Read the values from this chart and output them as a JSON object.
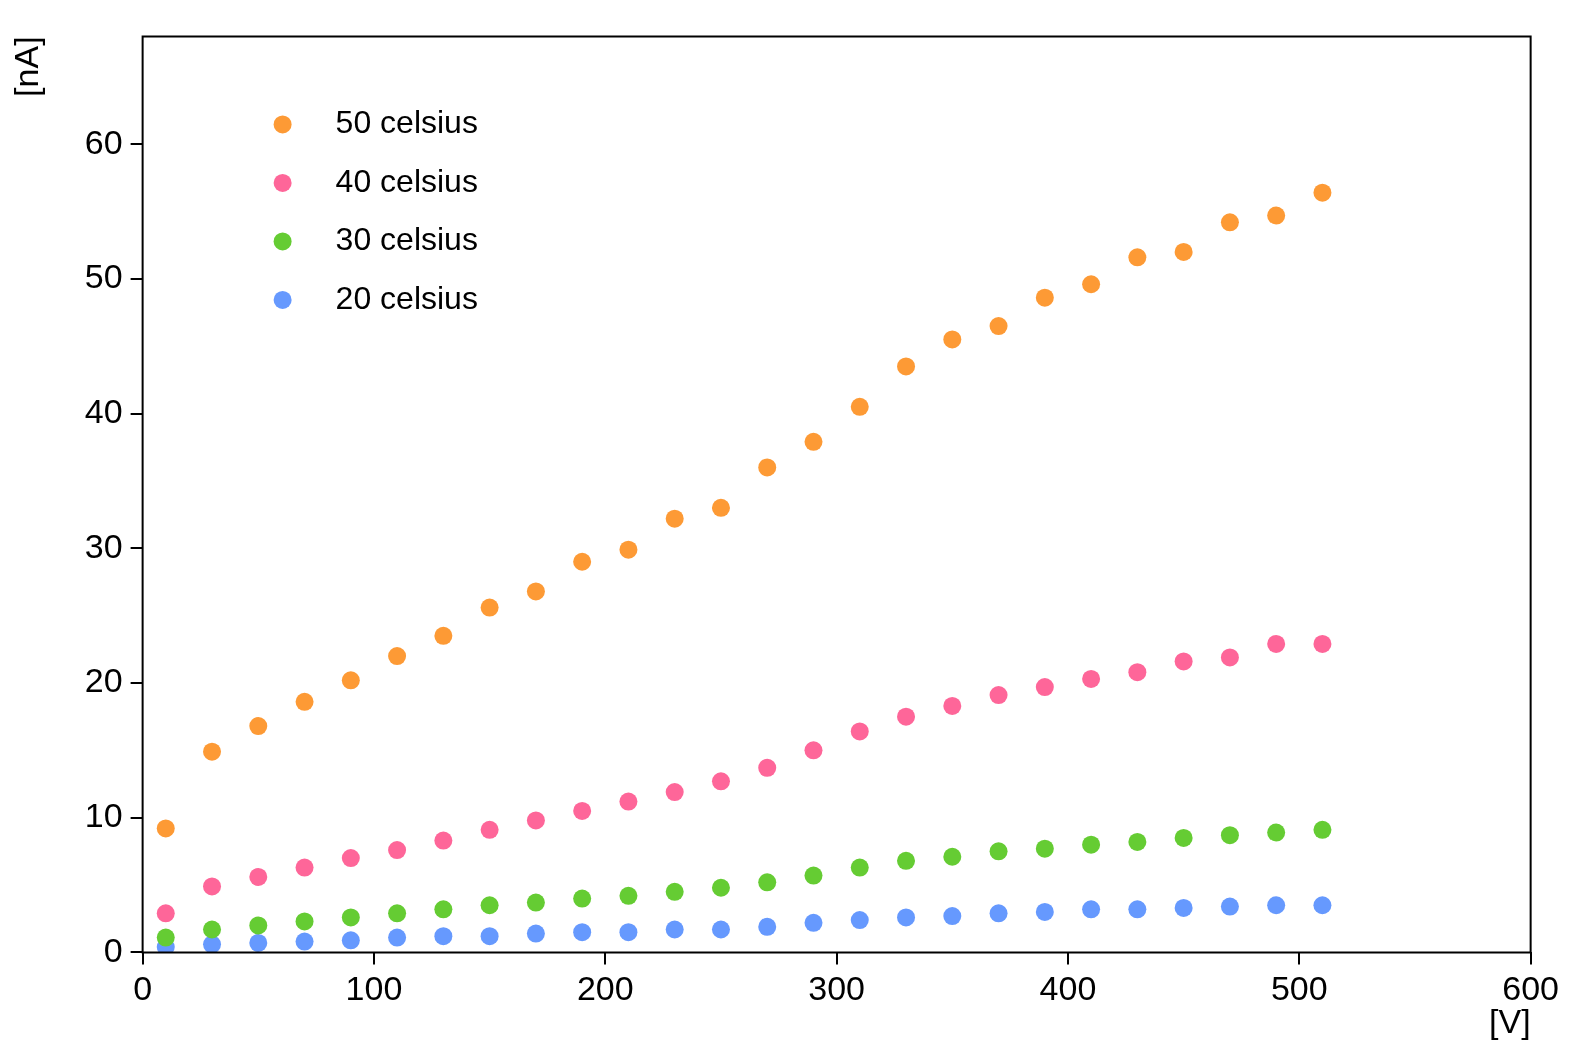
{
  "chart_data": {
    "type": "scatter",
    "xlabel": "[V]",
    "ylabel": "[nA]",
    "xlim": [
      0,
      600
    ],
    "ylim": [
      0,
      68
    ],
    "xticks": [
      0,
      100,
      200,
      300,
      400,
      500,
      600
    ],
    "yticks": [
      0,
      10,
      20,
      30,
      40,
      50,
      60
    ],
    "grid": false,
    "legend": "top left",
    "marker": "circle",
    "x": [
      10,
      30,
      50,
      70,
      90,
      110,
      130,
      150,
      170,
      190,
      210,
      230,
      250,
      270,
      290,
      310,
      330,
      350,
      370,
      390,
      410,
      430,
      450,
      470,
      490,
      510
    ],
    "series": [
      {
        "name": "50 celsius",
        "color": "#fd9a35",
        "values": [
          9.2,
          14.9,
          16.8,
          18.6,
          20.2,
          22.0,
          23.5,
          25.6,
          26.8,
          29.0,
          29.9,
          32.2,
          33.0,
          36.0,
          37.9,
          40.5,
          43.5,
          45.5,
          46.5,
          48.6,
          49.6,
          51.6,
          52.0,
          54.2,
          54.7,
          56.4
        ]
      },
      {
        "name": "40 celsius",
        "color": "#fe6699",
        "values": [
          2.9,
          4.9,
          5.6,
          6.3,
          7.0,
          7.6,
          8.3,
          9.1,
          9.8,
          10.5,
          11.2,
          11.9,
          12.7,
          13.7,
          15.0,
          16.4,
          17.5,
          18.3,
          19.1,
          19.7,
          20.3,
          20.8,
          21.6,
          21.9,
          22.9,
          22.9
        ]
      },
      {
        "name": "30 celsius",
        "color": "#65cc33",
        "values": [
          1.1,
          1.7,
          2.0,
          2.3,
          2.6,
          2.9,
          3.2,
          3.5,
          3.7,
          4.0,
          4.2,
          4.5,
          4.8,
          5.2,
          5.7,
          6.3,
          6.8,
          7.1,
          7.5,
          7.7,
          8.0,
          8.2,
          8.5,
          8.7,
          8.9,
          9.1
        ]
      },
      {
        "name": "20 celsius",
        "color": "#6699fe",
        "values": [
          0.4,
          0.6,
          0.7,
          0.8,
          0.9,
          1.1,
          1.2,
          1.2,
          1.4,
          1.5,
          1.5,
          1.7,
          1.7,
          1.9,
          2.2,
          2.4,
          2.6,
          2.7,
          2.9,
          3.0,
          3.2,
          3.2,
          3.3,
          3.4,
          3.5,
          3.5
        ]
      }
    ]
  }
}
